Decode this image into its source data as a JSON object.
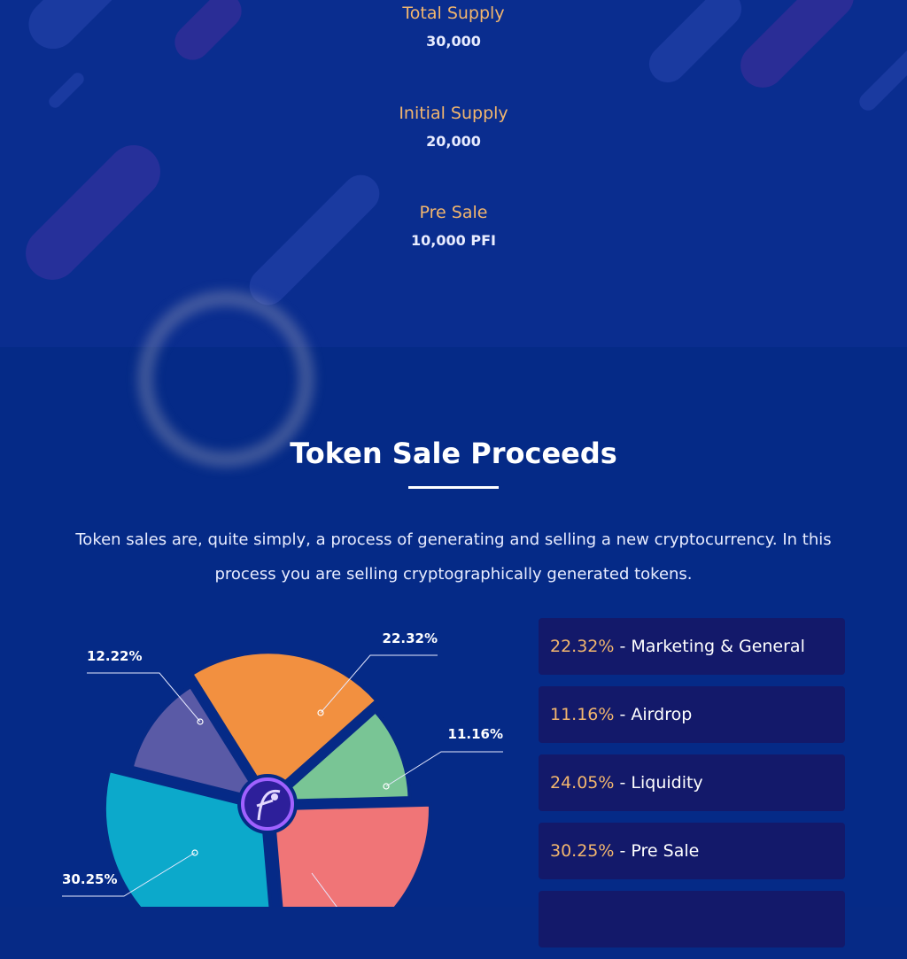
{
  "token_supply": {
    "items": [
      {
        "label": "Total Supply",
        "value": "30,000"
      },
      {
        "label": "Initial Supply",
        "value": "20,000"
      },
      {
        "label": "Pre Sale",
        "value": "10,000 PFI"
      }
    ]
  },
  "proceeds": {
    "title": "Token Sale Proceeds",
    "description": "Token sales are, quite simply, a process of generating and selling a new cryptocurrency. In this process you are selling cryptographically generated tokens."
  },
  "legend": [
    {
      "pct": "22.32%",
      "label": " - Marketing & General"
    },
    {
      "pct": "11.16%",
      "label": " - Airdrop"
    },
    {
      "pct": "24.05%",
      "label": " - Liquidity"
    },
    {
      "pct": "30.25%",
      "label": " - Pre Sale"
    },
    {
      "pct": "",
      "label": ""
    }
  ],
  "colors": {
    "accent": "#f2b66e",
    "background": "#062a86",
    "legend_box": "#13196a"
  },
  "chart_data": {
    "type": "pie",
    "slices": [
      {
        "label": "12.22%",
        "value": 12.22,
        "color": "#5a5aa6"
      },
      {
        "label": "22.32%",
        "value": 22.32,
        "color": "#f29040"
      },
      {
        "label": "11.16%",
        "value": 11.16,
        "color": "#79c595"
      },
      {
        "label": "",
        "value": 24.05,
        "color": "#f07577"
      },
      {
        "label": "30.25%",
        "value": 30.25,
        "color": "#0ca9cb"
      }
    ],
    "center_icon": "logo-icon"
  }
}
